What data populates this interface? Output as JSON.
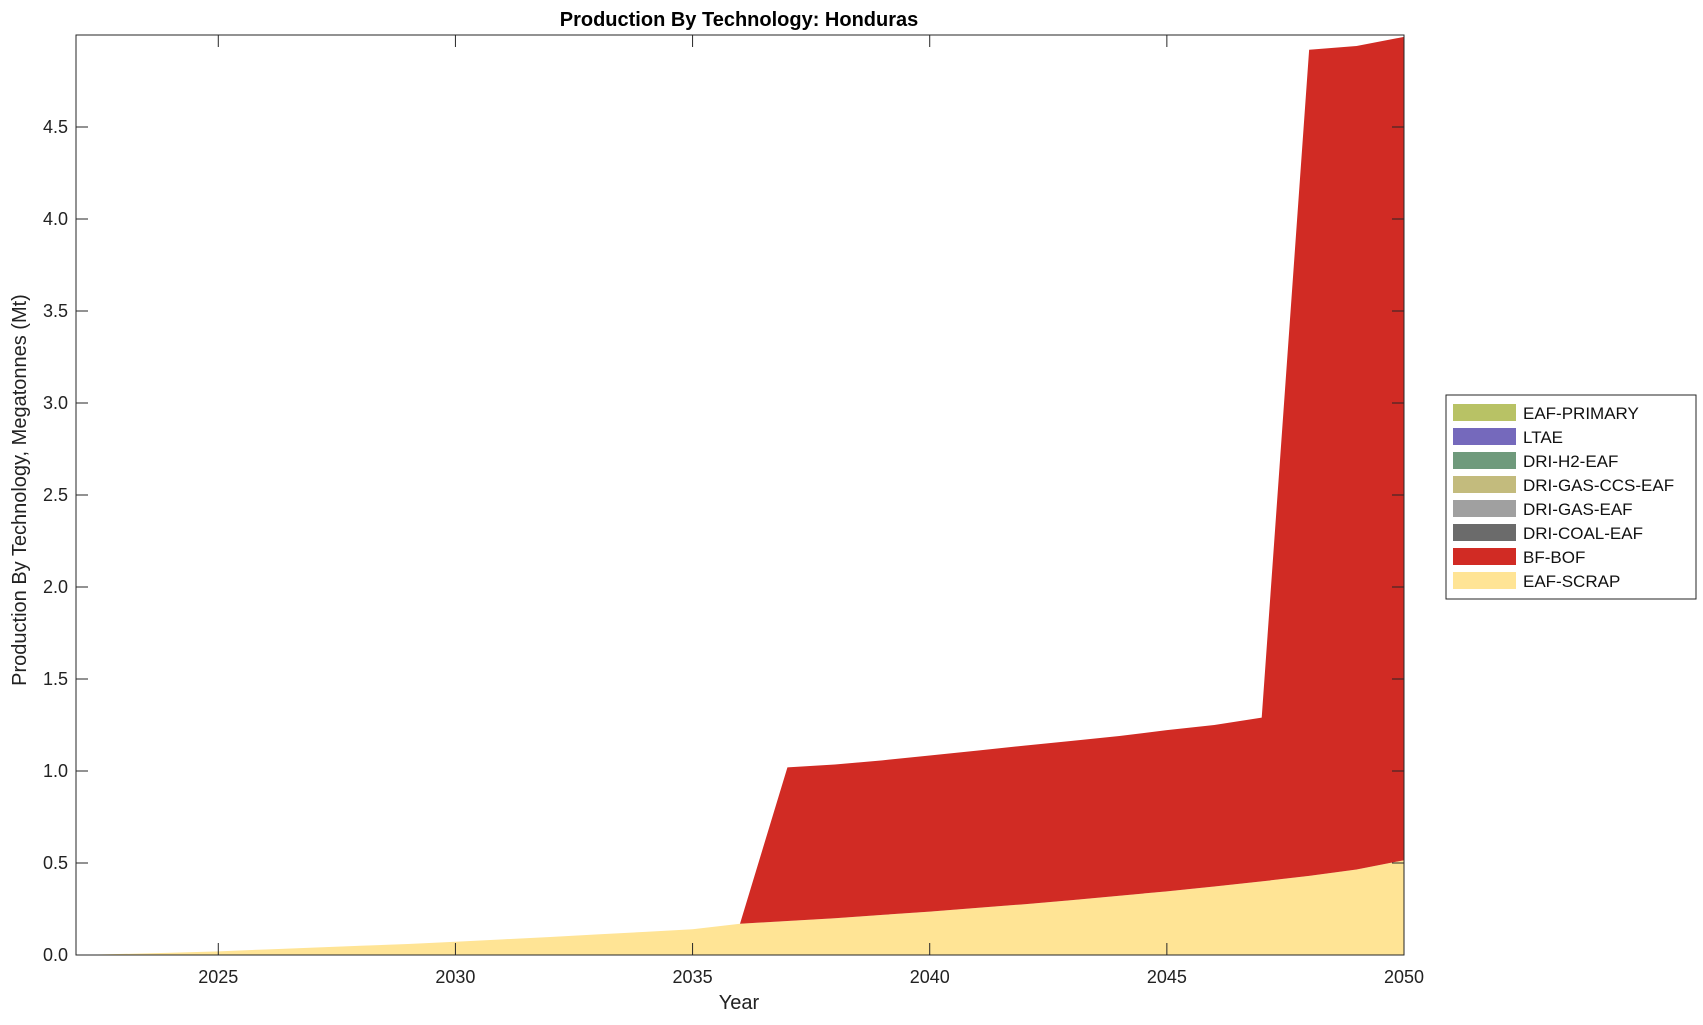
{
  "chart_data": {
    "type": "area",
    "stacked": true,
    "title": "Production By Technology: Honduras",
    "xlabel": "Year",
    "ylabel": "Production By Technology, Megatonnes (Mt)",
    "xlim": [
      2022,
      2050
    ],
    "ylim": [
      0,
      5.0
    ],
    "x_ticks": [
      2025,
      2030,
      2035,
      2040,
      2045,
      2050
    ],
    "y_ticks": [
      0.0,
      0.5,
      1.0,
      1.5,
      2.0,
      2.5,
      3.0,
      3.5,
      4.0,
      4.5
    ],
    "x_tick_labels": [
      "2025",
      "2030",
      "2035",
      "2040",
      "2045",
      "2050"
    ],
    "y_tick_labels": [
      "0.0",
      "0.5",
      "1.0",
      "1.5",
      "2.0",
      "2.5",
      "3.0",
      "3.5",
      "4.0",
      "4.5"
    ],
    "grid": false,
    "legend_position": "right",
    "x": [
      2022,
      2023,
      2024,
      2025,
      2026,
      2027,
      2028,
      2029,
      2030,
      2031,
      2032,
      2033,
      2034,
      2035,
      2036,
      2037,
      2038,
      2039,
      2040,
      2041,
      2042,
      2043,
      2044,
      2045,
      2046,
      2047,
      2048,
      2049,
      2050
    ],
    "series": [
      {
        "name": "EAF-SCRAP",
        "color": "#FFE495",
        "values": [
          0.0,
          0.006,
          0.012,
          0.02,
          0.03,
          0.04,
          0.05,
          0.06,
          0.072,
          0.085,
          0.098,
          0.112,
          0.126,
          0.14,
          0.17,
          0.185,
          0.2,
          0.218,
          0.236,
          0.256,
          0.276,
          0.298,
          0.322,
          0.346,
          0.372,
          0.4,
          0.43,
          0.465,
          0.515
        ]
      },
      {
        "name": "BF-BOF",
        "color": "#D12B24",
        "values": [
          0,
          0,
          0,
          0,
          0,
          0,
          0,
          0,
          0,
          0,
          0,
          0,
          0,
          0,
          0,
          0.835,
          0.835,
          0.84,
          0.848,
          0.855,
          0.862,
          0.866,
          0.868,
          0.876,
          0.878,
          0.89,
          4.49,
          4.475,
          4.475
        ]
      },
      {
        "name": "DRI-COAL-EAF",
        "color": "#6B6B6B",
        "values": [
          0,
          0,
          0,
          0,
          0,
          0,
          0,
          0,
          0,
          0,
          0,
          0,
          0,
          0,
          0,
          0,
          0,
          0,
          0,
          0,
          0,
          0,
          0,
          0,
          0,
          0,
          0,
          0,
          0
        ]
      },
      {
        "name": "DRI-GAS-EAF",
        "color": "#A0A0A0",
        "values": [
          0,
          0,
          0,
          0,
          0,
          0,
          0,
          0,
          0,
          0,
          0,
          0,
          0,
          0,
          0,
          0,
          0,
          0,
          0,
          0,
          0,
          0,
          0,
          0,
          0,
          0,
          0,
          0,
          0
        ]
      },
      {
        "name": "DRI-GAS-CCS-EAF",
        "color": "#C3BB7D",
        "values": [
          0,
          0,
          0,
          0,
          0,
          0,
          0,
          0,
          0,
          0,
          0,
          0,
          0,
          0,
          0,
          0,
          0,
          0,
          0,
          0,
          0,
          0,
          0,
          0,
          0,
          0,
          0,
          0,
          0
        ]
      },
      {
        "name": "DRI-H2-EAF",
        "color": "#6F9A7C",
        "values": [
          0,
          0,
          0,
          0,
          0,
          0,
          0,
          0,
          0,
          0,
          0,
          0,
          0,
          0,
          0,
          0,
          0,
          0,
          0,
          0,
          0,
          0,
          0,
          0,
          0,
          0,
          0,
          0,
          0
        ]
      },
      {
        "name": "LTAE",
        "color": "#7569BC",
        "values": [
          0,
          0,
          0,
          0,
          0,
          0,
          0,
          0,
          0,
          0,
          0,
          0,
          0,
          0,
          0,
          0,
          0,
          0,
          0,
          0,
          0,
          0,
          0,
          0,
          0,
          0,
          0,
          0,
          0
        ]
      },
      {
        "name": "EAF-PRIMARY",
        "color": "#B8C265",
        "values": [
          0,
          0,
          0,
          0,
          0,
          0,
          0,
          0,
          0,
          0,
          0,
          0,
          0,
          0,
          0,
          0,
          0,
          0,
          0,
          0,
          0,
          0,
          0,
          0,
          0,
          0,
          0,
          0,
          0
        ]
      }
    ],
    "legend_order": [
      "EAF-PRIMARY",
      "LTAE",
      "DRI-H2-EAF",
      "DRI-GAS-CCS-EAF",
      "DRI-GAS-EAF",
      "DRI-COAL-EAF",
      "BF-BOF",
      "EAF-SCRAP"
    ]
  }
}
